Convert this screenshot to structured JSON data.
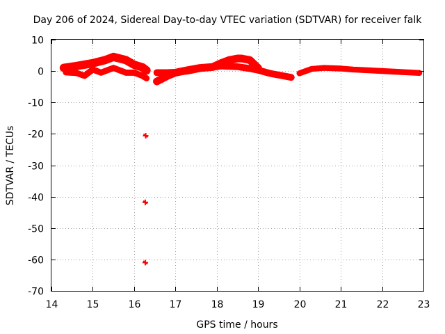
{
  "chart_data": {
    "type": "scatter",
    "title": "Day 206 of 2024, Sidereal Day-to-day VTEC variation (SDTVAR) for receiver falk",
    "xlabel": "GPS time / hours",
    "ylabel": "SDTVAR / TECUs",
    "xlim": [
      14,
      23
    ],
    "ylim": [
      -70,
      10
    ],
    "x_ticks": [
      "14",
      "15",
      "16",
      "17",
      "18",
      "19",
      "20",
      "21",
      "22",
      "23"
    ],
    "y_ticks": [
      "10",
      "0",
      "-10",
      "-20",
      "-30",
      "-40",
      "-50",
      "-60",
      "-70"
    ],
    "grid": true,
    "series": [
      {
        "name": "SDTVAR",
        "color": "#ff0000",
        "marker": "+",
        "bands": [
          {
            "x": [
              14.3,
              14.6,
              15.0,
              15.3,
              15.5,
              15.8,
              16.0,
              16.2,
              16.3
            ],
            "y": [
              1.0,
              1.6,
              2.5,
              3.5,
              4.5,
              3.5,
              2.0,
              1.2,
              0.2
            ],
            "spread": 2.0
          },
          {
            "x": [
              14.35,
              14.6,
              14.8,
              15.0,
              15.2,
              15.5,
              15.8,
              16.0,
              16.2,
              16.3
            ],
            "y": [
              -0.4,
              -0.6,
              -1.5,
              0.5,
              -0.5,
              1.0,
              -0.5,
              -0.5,
              -1.5,
              -2.3
            ],
            "spread": 1.3
          },
          {
            "x": [
              16.55,
              16.8,
              17.0,
              17.3,
              17.6,
              17.9,
              18.1,
              18.3,
              18.5,
              18.6,
              18.8,
              19.0
            ],
            "y": [
              -3.3,
              -1.6,
              -0.5,
              0.3,
              1.0,
              1.3,
              2.5,
              3.5,
              4.0,
              4.0,
              3.5,
              1.0
            ],
            "spread": 1.8
          },
          {
            "x": [
              16.55,
              16.8,
              17.0,
              17.3,
              17.6,
              17.9,
              18.1,
              18.3,
              18.5,
              18.8,
              19.0,
              19.3,
              19.6,
              19.8
            ],
            "y": [
              -0.5,
              -0.5,
              -0.4,
              0.0,
              0.8,
              1.2,
              1.6,
              1.5,
              1.4,
              0.8,
              0.3,
              -0.8,
              -1.5,
              -2.0
            ],
            "spread": 1.5
          },
          {
            "x": [
              20.0,
              20.3,
              20.6,
              21.0,
              21.3,
              21.6,
              22.0,
              22.3,
              22.6,
              22.9
            ],
            "y": [
              -0.7,
              0.7,
              1.0,
              0.8,
              0.5,
              0.3,
              0.0,
              -0.2,
              -0.4,
              -0.6
            ],
            "spread": 1.2
          }
        ],
        "outliers": [
          {
            "x": 16.28,
            "y": -20.6
          },
          {
            "x": 16.27,
            "y": -41.8
          },
          {
            "x": 16.27,
            "y": -61.0
          }
        ]
      }
    ]
  }
}
